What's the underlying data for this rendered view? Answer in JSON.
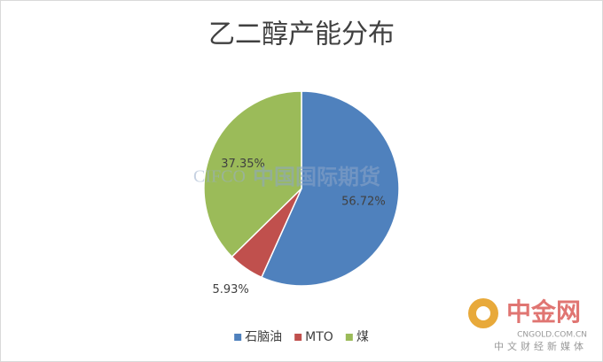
{
  "chart_data": {
    "type": "pie",
    "title": "乙二醇产能分布",
    "categories": [
      "石脑油",
      "MTO",
      "煤"
    ],
    "values": [
      56.72,
      5.93,
      37.35
    ],
    "value_labels": [
      "56.72%",
      "5.93%",
      "37.35%"
    ],
    "colors": [
      "#4f81bd",
      "#c0504d",
      "#9bbb59"
    ],
    "legend": "bottom"
  },
  "watermarks": {
    "cifco": "CIFCO",
    "cifco_cn": "中国国际期货",
    "cngold": "中金网",
    "cngold_url": "CNGOLD.COM.CN",
    "cngold_slogan": "中文财经新媒体"
  }
}
